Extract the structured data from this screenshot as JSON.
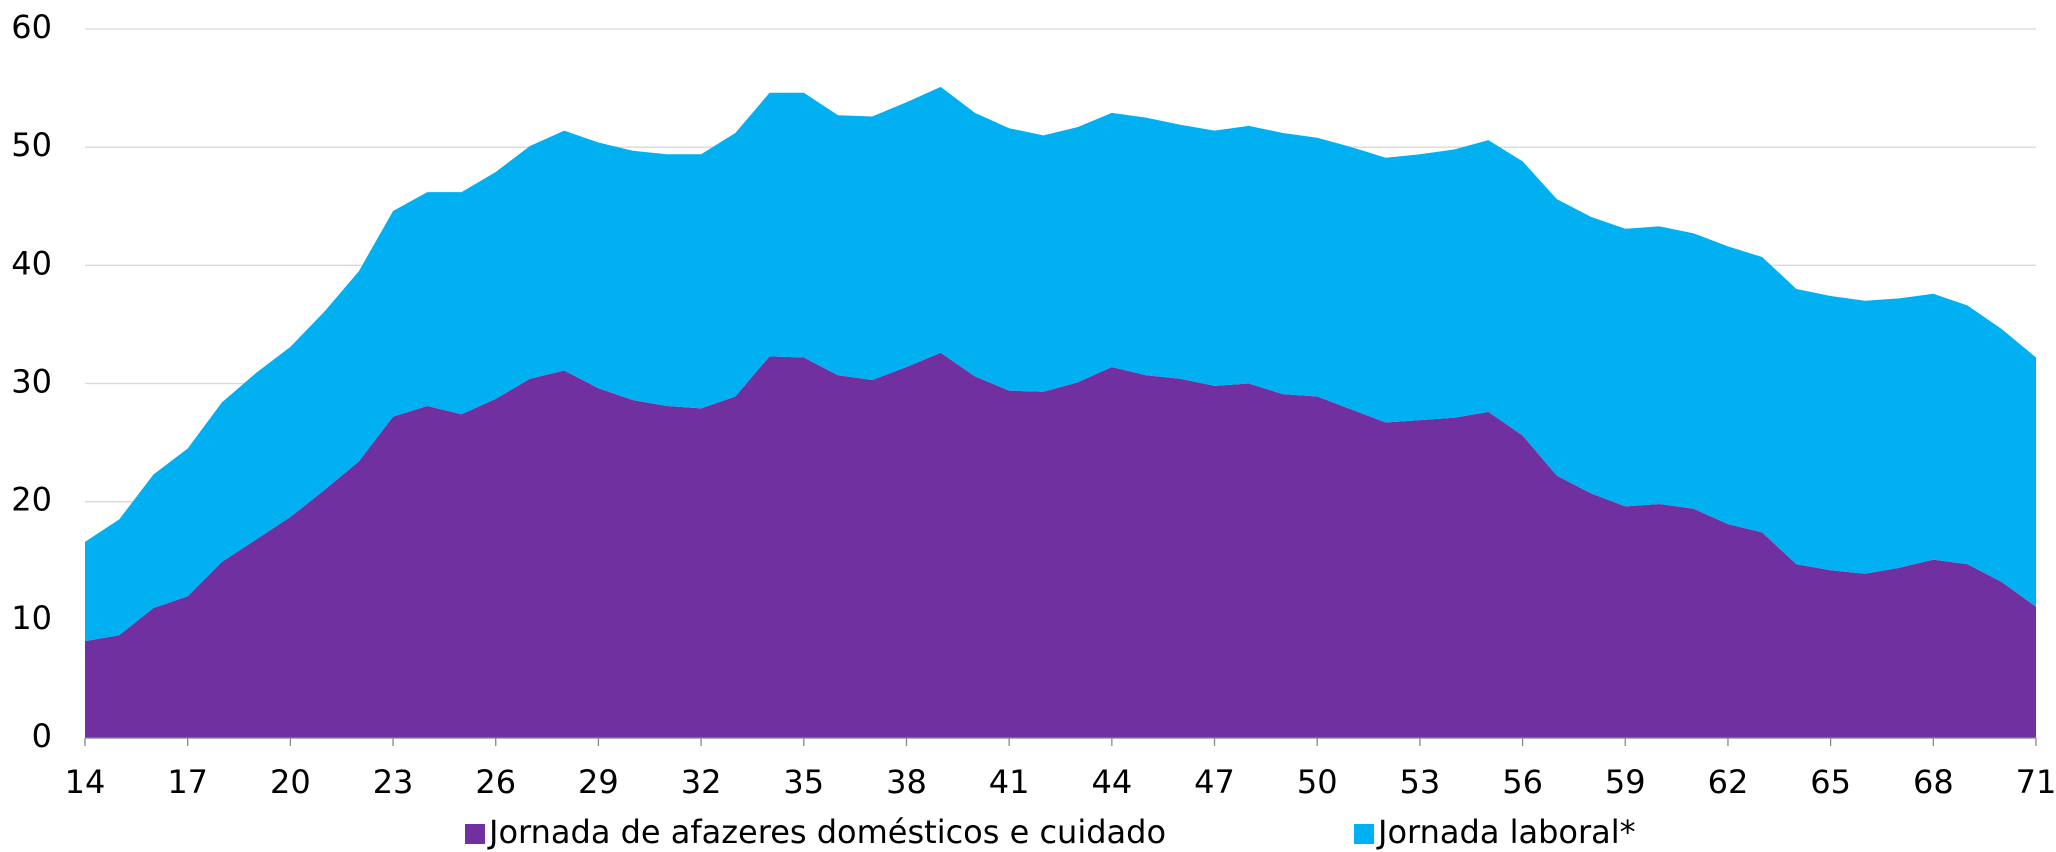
{
  "chart_data": {
    "type": "area",
    "stacked": true,
    "x": [
      14,
      15,
      16,
      17,
      18,
      19,
      20,
      21,
      22,
      23,
      24,
      25,
      26,
      27,
      28,
      29,
      30,
      31,
      32,
      33,
      34,
      35,
      36,
      37,
      38,
      39,
      40,
      41,
      42,
      43,
      44,
      45,
      46,
      47,
      48,
      49,
      50,
      51,
      52,
      53,
      54,
      55,
      56,
      57,
      58,
      59,
      60,
      61,
      62,
      63,
      64,
      65,
      66,
      67,
      68,
      69,
      70,
      71
    ],
    "series": [
      {
        "name": "Jornada de afazeres domésticos e cuidado",
        "color": "#7030a0",
        "values": [
          8.2,
          8.7,
          11.0,
          12.0,
          14.9,
          16.8,
          18.7,
          21.0,
          23.4,
          27.2,
          28.1,
          27.4,
          28.7,
          30.4,
          31.1,
          29.6,
          28.6,
          28.1,
          27.9,
          28.9,
          32.3,
          32.2,
          30.7,
          30.3,
          31.4,
          32.6,
          30.6,
          29.4,
          29.3,
          30.1,
          31.4,
          30.7,
          30.4,
          29.8,
          30.0,
          29.1,
          28.9,
          27.8,
          26.7,
          26.9,
          27.1,
          27.6,
          25.6,
          22.2,
          20.7,
          19.6,
          19.8,
          19.4,
          18.1,
          17.4,
          14.7,
          14.2,
          13.9,
          14.4,
          15.1,
          14.7,
          13.2,
          11.1
        ]
      },
      {
        "name": "Jornada laboral*",
        "color": "#00b0f0",
        "values": [
          8.4,
          9.8,
          11.3,
          12.5,
          13.5,
          14.1,
          14.4,
          15.1,
          16.1,
          17.4,
          18.1,
          18.8,
          19.2,
          19.7,
          20.3,
          20.8,
          21.1,
          21.3,
          21.5,
          22.3,
          22.3,
          22.4,
          22.0,
          22.3,
          22.4,
          22.5,
          22.3,
          22.2,
          21.7,
          21.6,
          21.5,
          21.8,
          21.5,
          21.6,
          21.8,
          22.1,
          21.9,
          22.2,
          22.4,
          22.5,
          22.7,
          23.0,
          23.2,
          23.4,
          23.4,
          23.5,
          23.5,
          23.3,
          23.5,
          23.3,
          23.3,
          23.2,
          23.1,
          22.8,
          22.5,
          21.9,
          21.4,
          21.1
        ]
      }
    ],
    "xlim": [
      14,
      71
    ],
    "xticks": [
      14,
      17,
      20,
      23,
      26,
      29,
      32,
      35,
      38,
      41,
      44,
      47,
      50,
      53,
      56,
      59,
      62,
      65,
      68,
      71
    ],
    "ylim": [
      0,
      60
    ],
    "yticks": [
      0,
      10,
      20,
      30,
      40,
      50,
      60
    ],
    "grid": true,
    "legend": "bottom"
  }
}
